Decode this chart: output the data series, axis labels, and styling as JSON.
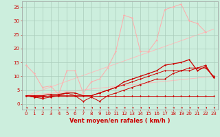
{
  "background_color": "#cceedd",
  "grid_color": "#aaccbb",
  "xlabel": "Vent moyen/en rafales ( km/h )",
  "xlabel_color": "#cc0000",
  "xlabel_fontsize": 6,
  "tick_color": "#cc0000",
  "tick_fontsize": 5,
  "xlim": [
    -0.5,
    23.5
  ],
  "ylim": [
    -2,
    37
  ],
  "yticks": [
    0,
    5,
    10,
    15,
    20,
    25,
    30,
    35
  ],
  "xticks": [
    0,
    1,
    2,
    3,
    4,
    5,
    6,
    7,
    8,
    9,
    10,
    11,
    12,
    13,
    14,
    15,
    16,
    17,
    18,
    19,
    20,
    21,
    22,
    23
  ],
  "series": [
    {
      "x": [
        0,
        23
      ],
      "y": [
        3,
        27
      ],
      "color": "#ffbbbb",
      "marker": null,
      "markersize": 0,
      "linewidth": 0.7,
      "zorder": 1
    },
    {
      "x": [
        0,
        23
      ],
      "y": [
        3,
        10
      ],
      "color": "#ffbbbb",
      "marker": null,
      "markersize": 0,
      "linewidth": 0.7,
      "zorder": 1
    },
    {
      "x": [
        0,
        1,
        2,
        3,
        4,
        5,
        6,
        7,
        8,
        9,
        10,
        11,
        12,
        13,
        14,
        15,
        16,
        17,
        18,
        19,
        20,
        21,
        22
      ],
      "y": [
        14,
        11,
        6,
        6.5,
        3.5,
        12,
        12,
        4,
        8,
        9,
        13,
        19,
        32,
        31,
        19,
        19,
        23,
        34,
        35,
        36,
        30,
        29,
        26
      ],
      "color": "#ffaaaa",
      "marker": "D",
      "markersize": 1.5,
      "linewidth": 0.7,
      "zorder": 2
    },
    {
      "x": [
        0,
        1,
        2,
        3,
        4,
        5,
        6,
        7,
        8,
        9,
        10,
        11,
        12,
        13,
        14,
        15,
        16,
        17,
        18,
        19,
        20,
        21,
        22,
        23
      ],
      "y": [
        3,
        3,
        3,
        3,
        3,
        3,
        3,
        3,
        3,
        3,
        3,
        3,
        3,
        3,
        3,
        3,
        3,
        3,
        3,
        3,
        3,
        3,
        3,
        3
      ],
      "color": "#cc0000",
      "marker": "D",
      "markersize": 1.5,
      "linewidth": 0.7,
      "zorder": 3
    },
    {
      "x": [
        0,
        1,
        2,
        3,
        4,
        5,
        6,
        7,
        8,
        9,
        10,
        11,
        12,
        13,
        14,
        15,
        16,
        17,
        18,
        19,
        20,
        21,
        22,
        23
      ],
      "y": [
        3,
        2.5,
        2.5,
        3,
        3,
        3,
        3,
        3,
        3,
        4,
        5,
        6,
        7,
        8,
        9,
        10,
        11,
        12,
        12,
        12,
        13,
        13,
        13,
        10
      ],
      "color": "#cc0000",
      "marker": "D",
      "markersize": 1.5,
      "linewidth": 0.7,
      "zorder": 3
    },
    {
      "x": [
        0,
        1,
        2,
        3,
        4,
        5,
        6,
        7,
        8,
        9,
        10,
        11,
        12,
        13,
        14,
        15,
        16,
        17,
        18,
        19,
        20,
        21,
        22,
        23
      ],
      "y": [
        3,
        2.5,
        2,
        2.5,
        3,
        4,
        3,
        1,
        2.5,
        1,
        3,
        4,
        5,
        6,
        7,
        8,
        9,
        9,
        11,
        12,
        12,
        13,
        14,
        9.5
      ],
      "color": "#cc0000",
      "marker": "D",
      "markersize": 1.5,
      "linewidth": 0.7,
      "zorder": 3
    },
    {
      "x": [
        0,
        1,
        2,
        3,
        4,
        5,
        6,
        7,
        8,
        9,
        10,
        11,
        12,
        13,
        14,
        15,
        16,
        17,
        18,
        19,
        20,
        21,
        22,
        23
      ],
      "y": [
        3,
        3,
        3,
        3.5,
        3.5,
        4,
        4,
        3,
        3,
        4,
        5,
        6,
        8,
        9,
        10,
        11,
        12,
        14,
        14.5,
        15,
        16,
        12,
        13.5,
        9.5
      ],
      "color": "#cc0000",
      "marker": "D",
      "markersize": 1.5,
      "linewidth": 0.9,
      "zorder": 4
    }
  ]
}
